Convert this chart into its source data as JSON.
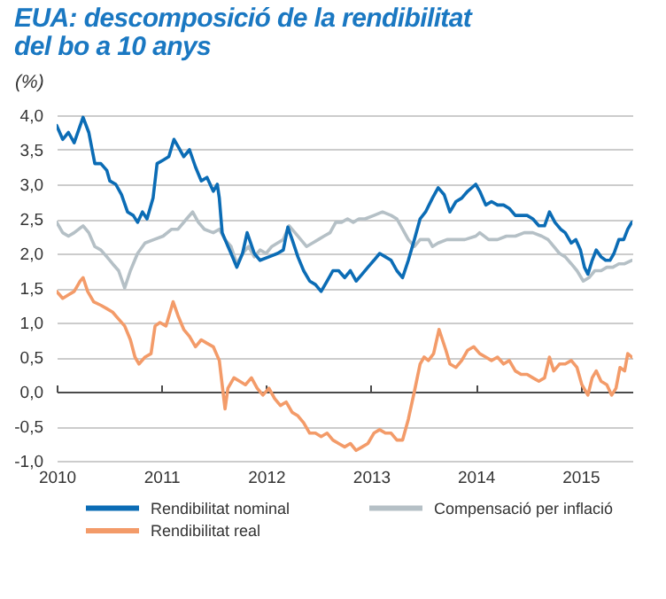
{
  "chart_data": {
    "type": "line",
    "title": "EUA: descomposició de la rendibilitat del bo a 10 anys",
    "ylabel": "(%)",
    "xlim": [
      "2010-01-01",
      "2015-07-01"
    ],
    "xticks": [
      "2010",
      "2011",
      "2012",
      "2013",
      "2014",
      "2015"
    ],
    "ylim": [
      -1,
      4
    ],
    "yticks": [
      {
        "value": -1,
        "label": "-1,0"
      },
      {
        "value": -0.5,
        "label": "-0,5"
      },
      {
        "value": 0,
        "label": "0,0"
      },
      {
        "value": 0.5,
        "label": "0,5"
      },
      {
        "value": 1,
        "label": "1,0"
      },
      {
        "value": 1.5,
        "label": "1,5"
      },
      {
        "value": 2,
        "label": "2,0"
      },
      {
        "value": 2.5,
        "label": "2,5"
      },
      {
        "value": 3,
        "label": "3,0"
      },
      {
        "value": 3.5,
        "label": "3,5"
      },
      {
        "value": 4,
        "label": "4,0"
      }
    ],
    "grid": "y",
    "legend": "bottom",
    "series": [
      {
        "name": "Rendibilitat nominal",
        "color": "#0b6cb5",
        "x": [
          "2010-01-01",
          "2010-01-22",
          "2010-02-11",
          "2010-03-03",
          "2010-04-03",
          "2010-04-23",
          "2010-05-14",
          "2010-06-04",
          "2010-06-25",
          "2010-07-05",
          "2010-07-26",
          "2010-08-15",
          "2010-09-05",
          "2010-09-25",
          "2010-10-10",
          "2010-10-27",
          "2010-11-12",
          "2010-12-03",
          "2010-12-17",
          "2011-01-07",
          "2011-01-27",
          "2011-02-14",
          "2011-02-28",
          "2011-03-20",
          "2011-04-09",
          "2011-04-30",
          "2011-05-20",
          "2011-06-09",
          "2011-07-01",
          "2011-07-15",
          "2011-07-22",
          "2011-08-01",
          "2011-08-11",
          "2011-09-01",
          "2011-09-21",
          "2011-10-11",
          "2011-10-27",
          "2011-11-21",
          "2011-12-11",
          "2012-01-11",
          "2012-02-10",
          "2012-03-01",
          "2012-03-17",
          "2012-04-01",
          "2012-04-21",
          "2012-05-11",
          "2012-06-01",
          "2012-06-21",
          "2012-07-11",
          "2012-08-01",
          "2012-08-21",
          "2012-09-10",
          "2012-10-01",
          "2012-10-21",
          "2012-11-10",
          "2012-12-01",
          "2012-12-21",
          "2013-01-11",
          "2013-01-31",
          "2013-02-20",
          "2013-03-12",
          "2013-04-01",
          "2013-04-21",
          "2013-05-11",
          "2013-06-01",
          "2013-06-21",
          "2013-07-10",
          "2013-08-03",
          "2013-08-23",
          "2013-09-13",
          "2013-10-03",
          "2013-10-24",
          "2013-11-13",
          "2013-12-04",
          "2014-01-01",
          "2014-01-15",
          "2014-02-05",
          "2014-02-25",
          "2014-03-18",
          "2014-04-08",
          "2014-04-28",
          "2014-05-19",
          "2014-06-08",
          "2014-06-29",
          "2014-07-19",
          "2014-08-09",
          "2014-08-29",
          "2014-09-15",
          "2014-10-04",
          "2014-10-24",
          "2014-11-09",
          "2014-11-30",
          "2014-12-16",
          "2015-01-01",
          "2015-01-15",
          "2015-01-27",
          "2015-02-11",
          "2015-02-25",
          "2015-03-14",
          "2015-03-30",
          "2015-04-14",
          "2015-04-28",
          "2015-05-15",
          "2015-06-01",
          "2015-06-15",
          "2015-06-29"
        ],
        "values": [
          3.85,
          3.65,
          3.75,
          3.6,
          3.97,
          3.75,
          3.3,
          3.3,
          3.2,
          3.05,
          3.0,
          2.85,
          2.6,
          2.55,
          2.45,
          2.6,
          2.5,
          2.8,
          3.3,
          3.35,
          3.4,
          3.65,
          3.55,
          3.4,
          3.5,
          3.25,
          3.05,
          3.1,
          2.9,
          3.0,
          2.8,
          2.3,
          2.2,
          2.0,
          1.8,
          2.0,
          2.3,
          2.0,
          1.9,
          1.95,
          2.0,
          2.05,
          2.38,
          2.2,
          1.95,
          1.75,
          1.6,
          1.55,
          1.45,
          1.6,
          1.75,
          1.75,
          1.65,
          1.75,
          1.6,
          1.7,
          1.8,
          1.9,
          2.0,
          1.95,
          1.9,
          1.75,
          1.65,
          1.9,
          2.2,
          2.5,
          2.6,
          2.8,
          2.95,
          2.85,
          2.6,
          2.75,
          2.8,
          2.9,
          3.0,
          2.9,
          2.7,
          2.75,
          2.7,
          2.7,
          2.65,
          2.55,
          2.55,
          2.55,
          2.5,
          2.4,
          2.4,
          2.6,
          2.45,
          2.35,
          2.3,
          2.15,
          2.2,
          2.05,
          1.8,
          1.7,
          1.9,
          2.05,
          1.95,
          1.9,
          1.9,
          2.0,
          2.2,
          2.2,
          2.35,
          2.45
        ]
      },
      {
        "name": "Compensació per inflació",
        "color": "#b5c0c6",
        "x": [
          "2010-01-01",
          "2010-01-22",
          "2010-02-11",
          "2010-03-03",
          "2010-04-03",
          "2010-04-23",
          "2010-05-14",
          "2010-06-04",
          "2010-06-25",
          "2010-07-15",
          "2010-08-05",
          "2010-08-26",
          "2010-09-15",
          "2010-10-10",
          "2010-11-05",
          "2010-12-06",
          "2011-01-07",
          "2011-02-06",
          "2011-02-28",
          "2011-03-30",
          "2011-04-20",
          "2011-05-10",
          "2011-05-31",
          "2011-07-01",
          "2011-07-22",
          "2011-08-11",
          "2011-09-01",
          "2011-09-21",
          "2011-10-11",
          "2011-11-01",
          "2011-11-21",
          "2011-12-11",
          "2012-01-01",
          "2012-01-21",
          "2012-02-10",
          "2012-03-01",
          "2012-03-21",
          "2012-04-11",
          "2012-05-01",
          "2012-05-21",
          "2012-06-11",
          "2012-07-01",
          "2012-07-21",
          "2012-08-11",
          "2012-08-31",
          "2012-09-20",
          "2012-10-11",
          "2012-10-31",
          "2012-11-20",
          "2012-12-11",
          "2013-01-11",
          "2013-02-10",
          "2013-03-12",
          "2013-04-01",
          "2013-04-21",
          "2013-05-11",
          "2013-06-01",
          "2013-06-21",
          "2013-07-21",
          "2013-08-03",
          "2013-08-23",
          "2013-09-23",
          "2013-10-24",
          "2013-11-24",
          "2014-01-01",
          "2014-01-15",
          "2014-02-15",
          "2014-03-18",
          "2014-04-18",
          "2014-05-19",
          "2014-06-19",
          "2014-07-19",
          "2014-08-19",
          "2014-09-10",
          "2014-09-30",
          "2014-10-20",
          "2014-11-09",
          "2014-11-30",
          "2014-12-20",
          "2015-01-11",
          "2015-01-31",
          "2015-02-20",
          "2015-03-14",
          "2015-04-03",
          "2015-04-24",
          "2015-05-15",
          "2015-06-04",
          "2015-06-29"
        ],
        "values": [
          2.45,
          2.3,
          2.25,
          2.3,
          2.4,
          2.3,
          2.1,
          2.05,
          1.95,
          1.85,
          1.75,
          1.5,
          1.75,
          2.0,
          2.15,
          2.2,
          2.25,
          2.35,
          2.35,
          2.5,
          2.6,
          2.45,
          2.35,
          2.3,
          2.35,
          2.2,
          2.1,
          1.85,
          2.0,
          2.1,
          1.95,
          2.05,
          2.0,
          2.1,
          2.15,
          2.2,
          2.4,
          2.3,
          2.2,
          2.1,
          2.15,
          2.2,
          2.25,
          2.3,
          2.45,
          2.45,
          2.5,
          2.45,
          2.5,
          2.5,
          2.55,
          2.6,
          2.55,
          2.5,
          2.35,
          2.2,
          2.1,
          2.2,
          2.2,
          2.1,
          2.15,
          2.2,
          2.2,
          2.2,
          2.25,
          2.3,
          2.2,
          2.2,
          2.25,
          2.25,
          2.3,
          2.3,
          2.25,
          2.2,
          2.1,
          2.0,
          1.95,
          1.85,
          1.75,
          1.6,
          1.65,
          1.75,
          1.75,
          1.8,
          1.8,
          1.85,
          1.85,
          1.9
        ]
      },
      {
        "name": "Rendibilitat real",
        "color": "#f39b69",
        "x": [
          "2010-01-01",
          "2010-01-22",
          "2010-02-11",
          "2010-03-03",
          "2010-03-24",
          "2010-04-03",
          "2010-04-19",
          "2010-05-10",
          "2010-06-04",
          "2010-06-25",
          "2010-07-15",
          "2010-08-05",
          "2010-08-26",
          "2010-09-15",
          "2010-10-01",
          "2010-10-15",
          "2010-11-05",
          "2010-11-26",
          "2010-12-10",
          "2010-12-27",
          "2011-01-17",
          "2011-02-11",
          "2011-02-28",
          "2011-03-20",
          "2011-04-09",
          "2011-04-30",
          "2011-05-20",
          "2011-06-09",
          "2011-07-01",
          "2011-07-22",
          "2011-08-01",
          "2011-08-11",
          "2011-08-21",
          "2011-09-11",
          "2011-10-01",
          "2011-10-21",
          "2011-11-11",
          "2011-12-01",
          "2011-12-21",
          "2012-01-11",
          "2012-01-31",
          "2012-02-20",
          "2012-03-11",
          "2012-04-01",
          "2012-04-21",
          "2012-05-11",
          "2012-06-01",
          "2012-06-21",
          "2012-07-11",
          "2012-08-01",
          "2012-08-21",
          "2012-09-10",
          "2012-10-01",
          "2012-10-21",
          "2012-11-10",
          "2012-12-01",
          "2012-12-21",
          "2013-01-11",
          "2013-01-31",
          "2013-02-20",
          "2013-03-12",
          "2013-04-01",
          "2013-04-21",
          "2013-05-11",
          "2013-06-01",
          "2013-06-21",
          "2013-07-05",
          "2013-07-20",
          "2013-08-07",
          "2013-08-26",
          "2013-09-19",
          "2013-10-03",
          "2013-10-24",
          "2013-11-13",
          "2013-12-04",
          "2013-12-25",
          "2014-01-15",
          "2014-02-05",
          "2014-02-25",
          "2014-03-18",
          "2014-04-08",
          "2014-04-28",
          "2014-05-19",
          "2014-06-08",
          "2014-06-29",
          "2014-07-19",
          "2014-08-09",
          "2014-08-29",
          "2014-09-15",
          "2014-09-30",
          "2014-10-20",
          "2014-11-09",
          "2014-11-30",
          "2014-12-20",
          "2015-01-06",
          "2015-01-27",
          "2015-02-11",
          "2015-02-25",
          "2015-03-14",
          "2015-04-03",
          "2015-04-20",
          "2015-05-05",
          "2015-05-19",
          "2015-06-04",
          "2015-06-15",
          "2015-06-29"
        ],
        "values": [
          1.45,
          1.35,
          1.4,
          1.45,
          1.6,
          1.65,
          1.45,
          1.3,
          1.25,
          1.2,
          1.15,
          1.05,
          0.95,
          0.75,
          0.5,
          0.4,
          0.5,
          0.55,
          0.95,
          1.0,
          0.95,
          1.3,
          1.1,
          0.9,
          0.8,
          0.65,
          0.75,
          0.7,
          0.65,
          0.45,
          0.1,
          -0.25,
          0.05,
          0.2,
          0.15,
          0.1,
          0.2,
          0.05,
          -0.05,
          0.05,
          -0.1,
          -0.2,
          -0.15,
          -0.3,
          -0.35,
          -0.45,
          -0.6,
          -0.6,
          -0.65,
          -0.6,
          -0.7,
          -0.75,
          -0.8,
          -0.75,
          -0.85,
          -0.8,
          -0.75,
          -0.6,
          -0.55,
          -0.6,
          -0.6,
          -0.7,
          -0.7,
          -0.4,
          0.0,
          0.4,
          0.5,
          0.45,
          0.55,
          0.9,
          0.6,
          0.4,
          0.35,
          0.45,
          0.6,
          0.65,
          0.55,
          0.5,
          0.45,
          0.5,
          0.4,
          0.45,
          0.3,
          0.25,
          0.25,
          0.2,
          0.15,
          0.2,
          0.5,
          0.3,
          0.4,
          0.4,
          0.45,
          0.35,
          0.1,
          -0.05,
          0.2,
          0.3,
          0.15,
          0.1,
          -0.05,
          0.05,
          0.35,
          0.3,
          0.55,
          0.5
        ]
      }
    ]
  }
}
